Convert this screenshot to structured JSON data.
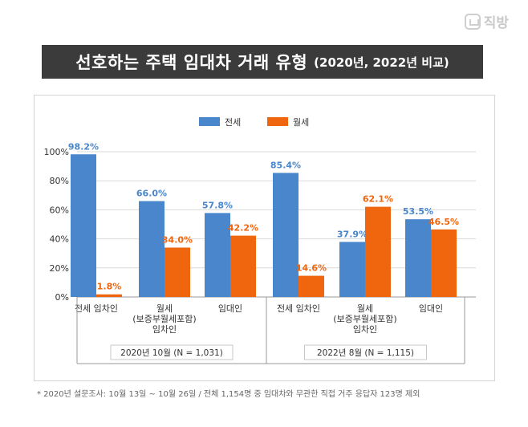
{
  "logo": {
    "text": "직방",
    "icon": "house-icon"
  },
  "title": {
    "main": "선호하는 주택 임대차 거래 유형",
    "sub": "(2020년, 2022년 비교)"
  },
  "chart_data": {
    "type": "bar",
    "legend": {
      "position": "top-center",
      "entries": [
        "전세",
        "월세"
      ]
    },
    "colors": {
      "전세": "#4a86cc",
      "월세": "#f0660f"
    },
    "categories": [
      [
        "전세 임차인"
      ],
      [
        "월세",
        "(보증부월세포함)",
        "임차인"
      ],
      [
        "임대인"
      ],
      [
        "전세 임차인"
      ],
      [
        "월세",
        "(보증부월세포함)",
        "임차인"
      ],
      [
        "임대인"
      ]
    ],
    "groups": [
      {
        "label": "2020년 10월 (N = 1,031)",
        "category_indices": [
          0,
          1,
          2
        ]
      },
      {
        "label": "2022년 8월 (N = 1,115)",
        "category_indices": [
          3,
          4,
          5
        ]
      }
    ],
    "series": [
      {
        "name": "전세",
        "values": [
          98.2,
          66.0,
          57.8,
          85.4,
          37.9,
          53.5
        ],
        "labels": [
          "98.2%",
          "66.0%",
          "57.8%",
          "85.4%",
          "37.9%",
          "53.5%"
        ]
      },
      {
        "name": "월세",
        "values": [
          1.8,
          34.0,
          42.2,
          14.6,
          62.1,
          46.5
        ],
        "labels": [
          "1.8%",
          "34.0%",
          "42.2%",
          "14.6%",
          "62.1%",
          "46.5%"
        ]
      }
    ],
    "yticks": [
      "0%",
      "20%",
      "40%",
      "60%",
      "80%",
      "100%"
    ],
    "ylim": [
      0,
      100
    ],
    "grid": true
  },
  "footnote": "* 2020년 설문조사: 10월 13일 ~ 10월 26일 / 전체 1,154명 중 임대차와 무관한 직접 거주 응답자 123명 제외"
}
